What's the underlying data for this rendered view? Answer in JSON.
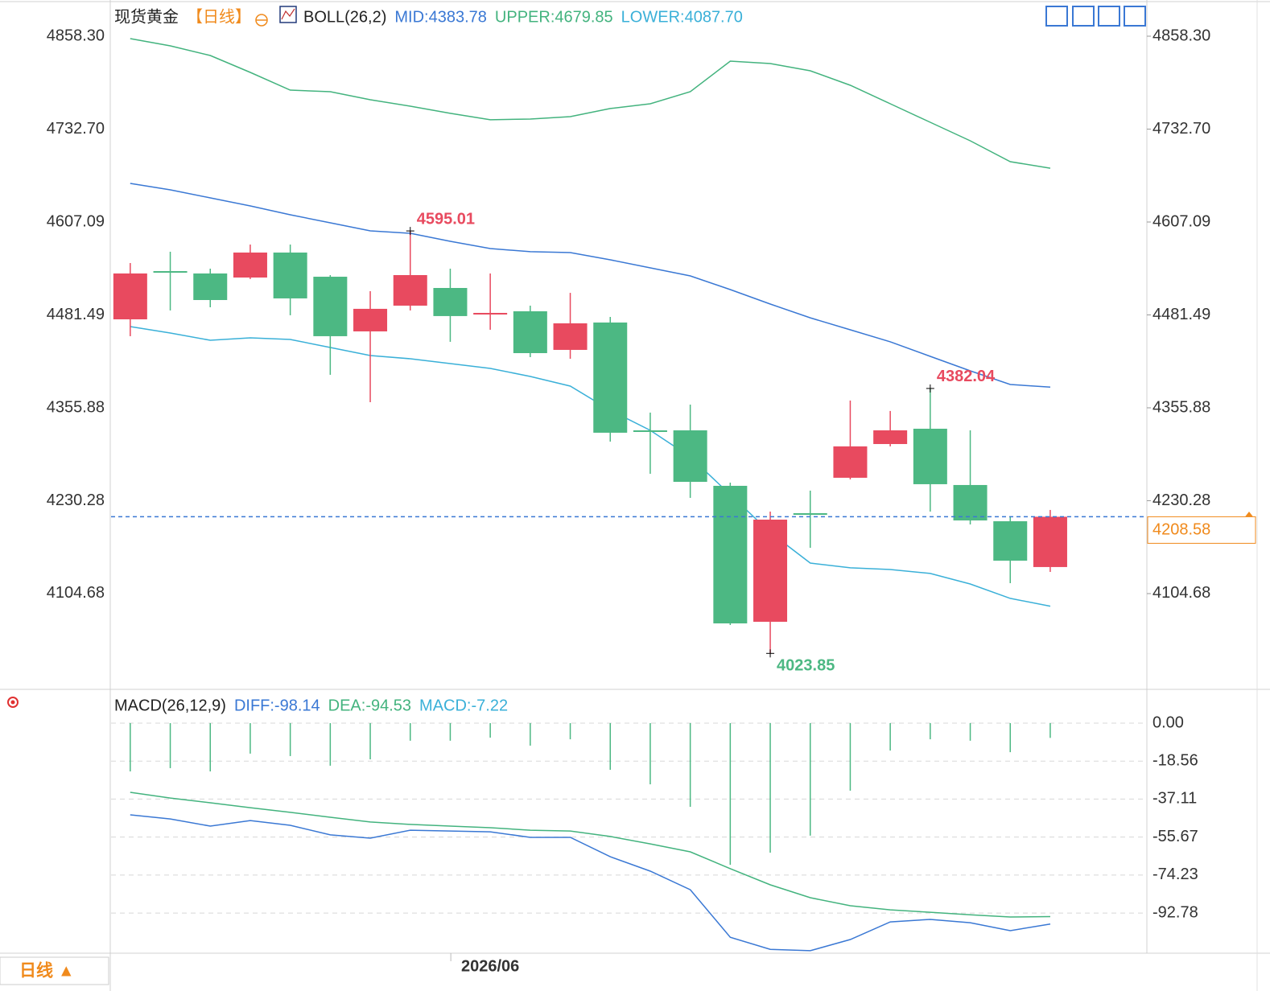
{
  "toolbar": {
    "period_button": "日线 ▲"
  },
  "chart_data": [
    {
      "type": "candlestick",
      "title": "现货黄金",
      "period": "【日线】",
      "indicator": "BOLL(26,2)",
      "categories": [
        null,
        null,
        null,
        null,
        null,
        null,
        null,
        null,
        null,
        "2026/06",
        null,
        null,
        null,
        null,
        null,
        null,
        null,
        null,
        null,
        null,
        null,
        null,
        null,
        null
      ],
      "open": [
        4475.5,
        4540.7,
        4537.5,
        4532.0,
        4565.8,
        4533.1,
        4459.2,
        4494.0,
        4517.9,
        4482.0,
        4486.4,
        4434.2,
        4471.2,
        4325.4,
        4325.4,
        4250.4,
        4066.6,
        4213.4,
        4261.3,
        4306.9,
        4327.6,
        4251.5,
        4202.5,
        4140.6
      ],
      "high": [
        4551.6,
        4566.9,
        4544.0,
        4576.6,
        4576.6,
        4535.3,
        4513.5,
        4595.01,
        4544.0,
        4537.5,
        4494.0,
        4511.3,
        4478.8,
        4349.4,
        4360.2,
        4254.7,
        4215.6,
        4243.9,
        4365.7,
        4351.6,
        4382.04,
        4325.4,
        4208.0,
        4217.8
      ],
      "low": [
        4452.7,
        4487.5,
        4491.8,
        4530.0,
        4481.0,
        4400.5,
        4363.5,
        4487.5,
        4445.1,
        4461.4,
        4424.4,
        4422.2,
        4310.2,
        4266.7,
        4234.1,
        4062.2,
        4023.85,
        4166.6,
        4259.1,
        4303.7,
        4215.6,
        4198.2,
        4118.8,
        4134.0
      ],
      "close": [
        4537.5,
        4538.6,
        4501.6,
        4565.8,
        4503.8,
        4452.7,
        4489.7,
        4535.3,
        4479.9,
        4484.2,
        4429.8,
        4470.1,
        4322.2,
        4323.3,
        4255.8,
        4064.4,
        4204.7,
        4211.2,
        4303.7,
        4325.4,
        4252.6,
        4203.6,
        4149.2,
        4208.58
      ],
      "up_color": "#e84a5f",
      "down_color": "#4cb883",
      "series": [
        {
          "label": "MID:4383.78",
          "color": "#3a78d4",
          "values": [
            4659.3,
            4650.6,
            4639.7,
            4628.8,
            4616.9,
            4606.0,
            4595.1,
            4591.9,
            4581.0,
            4571.2,
            4566.9,
            4565.8,
            4556.0,
            4545.1,
            4534.2,
            4515.7,
            4496.1,
            4477.6,
            4461.4,
            4445.1,
            4425.5,
            4405.9,
            4387.4,
            4383.78
          ]
        },
        {
          "label": "UPPER:4679.85",
          "color": "#43b37e",
          "values": [
            4855.0,
            4845.3,
            4832.2,
            4809.4,
            4785.4,
            4783.3,
            4772.4,
            4763.7,
            4754.0,
            4745.3,
            4746.3,
            4749.6,
            4760.5,
            4767.0,
            4783.3,
            4824.6,
            4821.3,
            4811.5,
            4792.0,
            4767.0,
            4741.9,
            4716.9,
            4688.6,
            4679.85
          ]
        },
        {
          "label": "LOWER:4087.70",
          "color": "#3ab0d8",
          "values": [
            4465.7,
            4457.0,
            4447.2,
            4450.5,
            4448.3,
            4437.4,
            4426.6,
            4422.2,
            4415.7,
            4409.1,
            4398.3,
            4385.2,
            4352.6,
            4325.4,
            4289.5,
            4238.4,
            4187.3,
            4146.0,
            4139.5,
            4137.3,
            4131.9,
            4117.7,
            4098.2,
            4087.7
          ]
        }
      ],
      "ylim": [
        3977.4,
        4901.8
      ],
      "yticks": [
        {
          "value": 4858.3,
          "label": "4858.30"
        },
        {
          "value": 4732.7,
          "label": "4732.70"
        },
        4607.09,
        4481.49,
        4355.88,
        4230.28,
        4104.68
      ],
      "last_price": 4208.58,
      "last_price_color": "#f08a1c",
      "high_labels": [
        4595.01,
        4382.04
      ],
      "low_labels": [
        4023.85
      ]
    },
    {
      "type": "macd",
      "title": "MACD(26,12,9)",
      "series": [
        {
          "label": "DIFF:-98.14",
          "color": "#3a78d4",
          "values": [
            -44.8,
            -46.8,
            -50.3,
            -47.6,
            -49.9,
            -54.6,
            -56.2,
            -52.3,
            -52.7,
            -53.1,
            -55.8,
            -55.8,
            -65.3,
            -72.3,
            -81.4,
            -104.6,
            -110.5,
            -111.2,
            -105.7,
            -97.1,
            -95.9,
            -97.5,
            -101.4,
            -98.14
          ]
        },
        {
          "label": "DEA:-94.53",
          "color": "#43b37e",
          "values": [
            -33.8,
            -36.6,
            -38.9,
            -41.3,
            -43.6,
            -46.0,
            -48.3,
            -49.5,
            -50.3,
            -51.1,
            -52.3,
            -52.7,
            -55.4,
            -59.0,
            -62.9,
            -71.1,
            -79.0,
            -85.3,
            -89.2,
            -91.2,
            -92.4,
            -93.6,
            -94.7,
            -94.53
          ]
        }
      ],
      "histogram": {
        "label": "MACD:-7.22",
        "label_color": "#3ab0d8",
        "color": "#4cb883",
        "values": [
          -23.6,
          -22.0,
          -23.6,
          -14.9,
          -16.1,
          -20.8,
          -17.7,
          -8.6,
          -8.6,
          -7.1,
          -11.0,
          -7.9,
          -22.8,
          -29.9,
          -40.9,
          -69.2,
          -63.3,
          -55.0,
          -33.0,
          -13.4,
          -7.9,
          -8.6,
          -14.2,
          -7.22
        ]
      },
      "ylim": [
        -112.4,
        16.1
      ],
      "yticks": [
        {
          "value": 0,
          "label": "0.00"
        },
        -18.56,
        -37.11,
        -55.67,
        -74.23,
        -92.78
      ]
    }
  ]
}
